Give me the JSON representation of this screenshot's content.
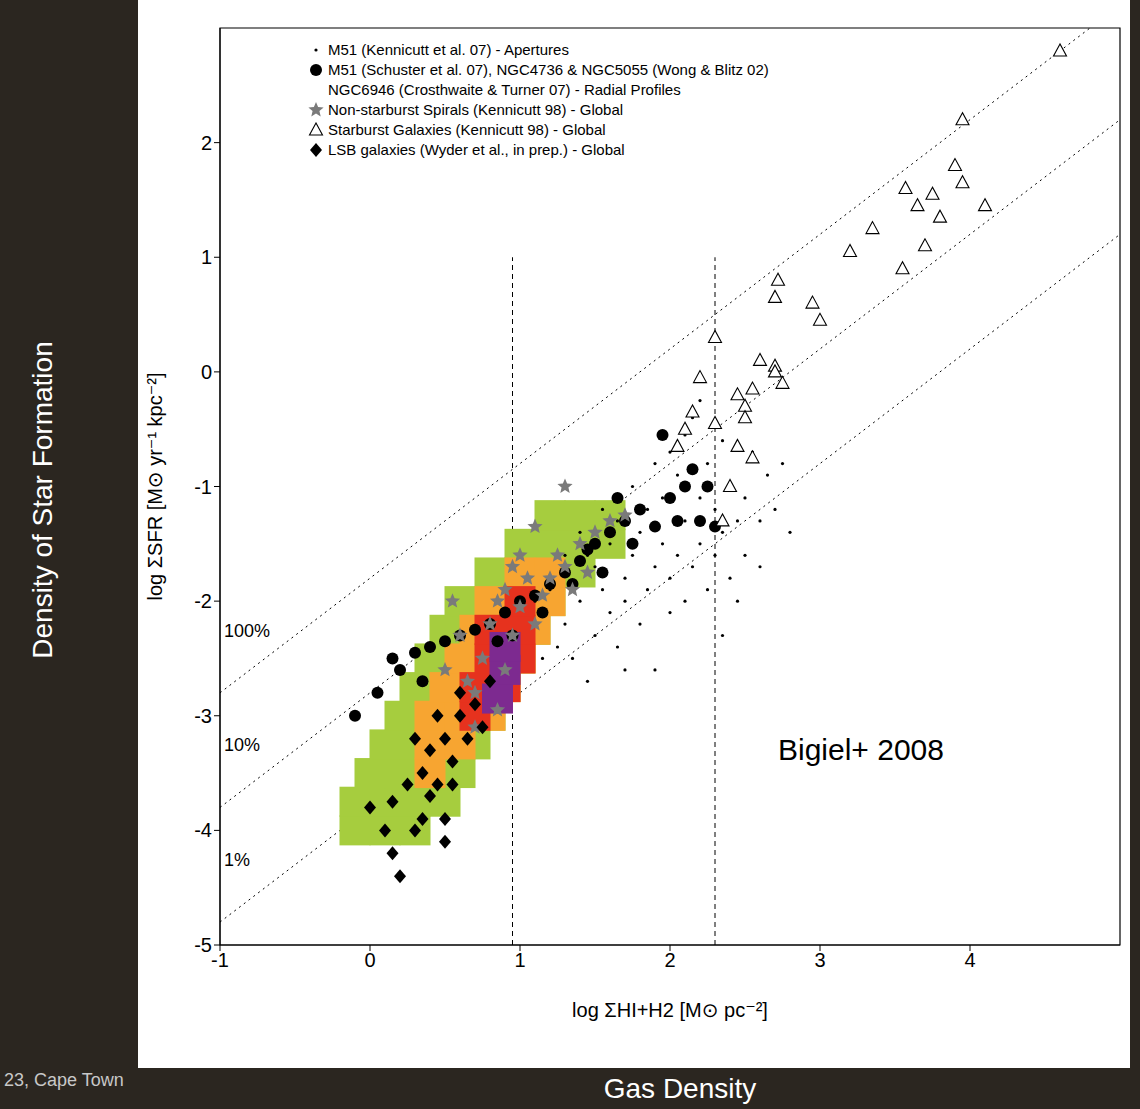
{
  "chart_data": {
    "type": "scatter",
    "xlabel": "log ΣHI+H2 [M⊙ pc⁻²]",
    "ylabel": "log ΣSFR [M⊙ yr⁻¹ kpc⁻²]",
    "outer_xlabel": "Gas Density",
    "outer_ylabel": "Density of Star Formation",
    "annotation": "Bigiel+ 2008",
    "footer": "23, Cape Town",
    "xlim": [
      -1,
      5
    ],
    "ylim": [
      -5,
      3
    ],
    "xticks": [
      -1,
      0,
      1,
      2,
      3,
      4
    ],
    "yticks": [
      -5,
      -4,
      -3,
      -2,
      -1,
      0,
      1,
      2
    ],
    "grid": false,
    "legend": "upper left",
    "lines": [
      {
        "label": "100%",
        "x": [
          -1,
          4.8
        ],
        "y": [
          -2.8,
          3.0
        ],
        "line_style": "dotted"
      },
      {
        "label": "10%",
        "x": [
          -1,
          5
        ],
        "y": [
          -3.8,
          2.2
        ],
        "line_style": "dotted"
      },
      {
        "label": "1%",
        "x": [
          -1,
          5
        ],
        "y": [
          -4.8,
          1.2
        ],
        "line_style": "dotted"
      }
    ],
    "vlines": [
      {
        "x": 0.95,
        "y": [
          -5,
          1.0
        ],
        "line_style": "dashed"
      },
      {
        "x": 2.3,
        "y": [
          -5,
          1.0
        ],
        "line_style": "dashed"
      }
    ],
    "series": [
      {
        "color": "#a6cd3e",
        "marker": "square",
        "points": [
          [
            -0.1,
            -4.0
          ],
          [
            0.1,
            -4.0
          ],
          [
            0.3,
            -4.0
          ],
          [
            -0.1,
            -3.75
          ],
          [
            0.1,
            -3.75
          ],
          [
            0.3,
            -3.75
          ],
          [
            0.5,
            -3.75
          ],
          [
            0.0,
            -3.5
          ],
          [
            0.2,
            -3.5
          ],
          [
            0.4,
            -3.5
          ],
          [
            0.6,
            -3.5
          ],
          [
            0.1,
            -3.25
          ],
          [
            0.3,
            -3.25
          ],
          [
            0.5,
            -3.25
          ],
          [
            0.7,
            -3.25
          ],
          [
            0.2,
            -3.0
          ],
          [
            0.4,
            -3.0
          ],
          [
            0.6,
            -3.0
          ],
          [
            0.8,
            -3.0
          ],
          [
            0.3,
            -2.75
          ],
          [
            0.5,
            -2.75
          ],
          [
            0.7,
            -2.75
          ],
          [
            0.9,
            -2.75
          ],
          [
            0.4,
            -2.5
          ],
          [
            0.6,
            -2.5
          ],
          [
            0.8,
            -2.5
          ],
          [
            1.0,
            -2.5
          ],
          [
            0.5,
            -2.25
          ],
          [
            0.7,
            -2.25
          ],
          [
            0.9,
            -2.25
          ],
          [
            1.1,
            -2.25
          ],
          [
            0.6,
            -2.0
          ],
          [
            0.8,
            -2.0
          ],
          [
            1.0,
            -2.0
          ],
          [
            1.2,
            -2.0
          ],
          [
            0.8,
            -1.75
          ],
          [
            1.0,
            -1.75
          ],
          [
            1.2,
            -1.75
          ],
          [
            1.4,
            -1.75
          ],
          [
            1.0,
            -1.5
          ],
          [
            1.2,
            -1.5
          ],
          [
            1.4,
            -1.5
          ],
          [
            1.6,
            -1.5
          ],
          [
            1.2,
            -1.25
          ],
          [
            1.4,
            -1.25
          ],
          [
            1.6,
            -1.25
          ]
        ]
      },
      {
        "color": "#f7a531",
        "marker": "square",
        "points": [
          [
            0.4,
            -3.5
          ],
          [
            0.4,
            -3.25
          ],
          [
            0.6,
            -3.25
          ],
          [
            0.4,
            -3.0
          ],
          [
            0.6,
            -3.0
          ],
          [
            0.8,
            -3.0
          ],
          [
            0.5,
            -2.75
          ],
          [
            0.7,
            -2.75
          ],
          [
            0.9,
            -2.75
          ],
          [
            0.6,
            -2.5
          ],
          [
            0.8,
            -2.5
          ],
          [
            1.0,
            -2.5
          ],
          [
            0.7,
            -2.25
          ],
          [
            0.9,
            -2.25
          ],
          [
            1.1,
            -2.25
          ],
          [
            0.8,
            -2.0
          ],
          [
            1.0,
            -2.0
          ],
          [
            1.2,
            -2.0
          ],
          [
            1.0,
            -1.75
          ],
          [
            1.2,
            -1.75
          ]
        ]
      },
      {
        "color": "#e6321e",
        "marker": "square",
        "points": [
          [
            0.7,
            -3.0
          ],
          [
            0.7,
            -2.75
          ],
          [
            0.9,
            -2.75
          ],
          [
            0.8,
            -2.5
          ],
          [
            1.0,
            -2.5
          ],
          [
            0.8,
            -2.25
          ],
          [
            1.0,
            -2.25
          ],
          [
            1.0,
            -2.0
          ]
        ]
      },
      {
        "color": "#7d2a90",
        "marker": "square",
        "points": [
          [
            0.85,
            -2.85
          ],
          [
            0.9,
            -2.6
          ],
          [
            0.9,
            -2.4
          ]
        ]
      },
      {
        "name": "M51 (Kennicutt et al. 07) - Apertures",
        "color": "#000000",
        "marker": "dot",
        "points": [
          [
            1.2,
            -1.9
          ],
          [
            1.3,
            -2.2
          ],
          [
            1.35,
            -2.5
          ],
          [
            1.4,
            -2.0
          ],
          [
            1.45,
            -1.6
          ],
          [
            1.5,
            -2.3
          ],
          [
            1.55,
            -1.9
          ],
          [
            1.6,
            -2.1
          ],
          [
            1.6,
            -1.5
          ],
          [
            1.65,
            -2.4
          ],
          [
            1.7,
            -1.8
          ],
          [
            1.7,
            -2.0
          ],
          [
            1.75,
            -1.6
          ],
          [
            1.8,
            -2.2
          ],
          [
            1.8,
            -1.4
          ],
          [
            1.85,
            -1.9
          ],
          [
            1.9,
            -1.7
          ],
          [
            1.9,
            -2.6
          ],
          [
            1.95,
            -1.5
          ],
          [
            2.0,
            -1.8
          ],
          [
            2.0,
            -2.1
          ],
          [
            2.05,
            -1.6
          ],
          [
            2.1,
            -1.3
          ],
          [
            2.1,
            -2.0
          ],
          [
            2.15,
            -1.7
          ],
          [
            2.2,
            -1.5
          ],
          [
            2.2,
            -1.1
          ],
          [
            2.25,
            -1.9
          ],
          [
            2.3,
            -1.2
          ],
          [
            2.3,
            -1.6
          ],
          [
            2.35,
            -1.4
          ],
          [
            2.4,
            -1.8
          ],
          [
            2.4,
            -1.0
          ],
          [
            2.45,
            -1.3
          ],
          [
            2.5,
            -1.6
          ],
          [
            2.5,
            -1.1
          ],
          [
            2.6,
            -1.3
          ],
          [
            2.65,
            -0.9
          ],
          [
            2.7,
            -1.2
          ],
          [
            2.75,
            -0.8
          ],
          [
            2.55,
            -0.7
          ],
          [
            2.35,
            -0.6
          ],
          [
            2.25,
            -0.8
          ],
          [
            2.15,
            -0.4
          ],
          [
            2.05,
            -0.9
          ],
          [
            1.95,
            -1.1
          ],
          [
            1.85,
            -1.2
          ],
          [
            1.75,
            -1.0
          ],
          [
            1.65,
            -1.3
          ],
          [
            1.55,
            -1.2
          ],
          [
            1.5,
            -1.7
          ],
          [
            1.4,
            -1.4
          ],
          [
            1.3,
            -1.6
          ],
          [
            1.25,
            -2.4
          ],
          [
            1.15,
            -2.5
          ],
          [
            1.45,
            -2.7
          ],
          [
            1.1,
            -2.0
          ],
          [
            2.0,
            -0.7
          ],
          [
            1.9,
            -0.8
          ],
          [
            2.45,
            -2.0
          ],
          [
            2.6,
            -1.7
          ],
          [
            2.8,
            -1.4
          ],
          [
            2.35,
            -2.3
          ],
          [
            1.7,
            -2.6
          ],
          [
            2.2,
            -0.25
          ],
          [
            2.1,
            -0.55
          ]
        ]
      },
      {
        "name": "M51 (Schuster et al. 07), NGC4736 & NGC5055 (Wong & Blitz 02) NGC6946 (Crosthwaite & Turner 07) - Radial Profiles",
        "color": "#000000",
        "marker": "circle",
        "points": [
          [
            0.15,
            -2.5
          ],
          [
            0.3,
            -2.45
          ],
          [
            0.4,
            -2.4
          ],
          [
            0.5,
            -2.35
          ],
          [
            0.6,
            -2.3
          ],
          [
            0.7,
            -2.25
          ],
          [
            0.8,
            -2.2
          ],
          [
            0.9,
            -2.1
          ],
          [
            1.0,
            -2.0
          ],
          [
            1.1,
            -1.95
          ],
          [
            1.2,
            -1.85
          ],
          [
            1.3,
            -1.75
          ],
          [
            1.4,
            -1.65
          ],
          [
            1.5,
            -1.5
          ],
          [
            1.6,
            -1.4
          ],
          [
            1.65,
            -1.1
          ],
          [
            1.7,
            -1.3
          ],
          [
            1.8,
            -1.2
          ],
          [
            1.9,
            -1.35
          ],
          [
            1.95,
            -0.55
          ],
          [
            2.0,
            -1.1
          ],
          [
            2.1,
            -1.0
          ],
          [
            2.15,
            -0.85
          ],
          [
            2.2,
            -1.3
          ],
          [
            2.3,
            -1.35
          ],
          [
            2.25,
            -1.0
          ],
          [
            1.35,
            -1.85
          ],
          [
            1.55,
            -1.75
          ],
          [
            1.15,
            -2.1
          ],
          [
            0.85,
            -2.35
          ],
          [
            0.95,
            -2.3
          ],
          [
            1.45,
            -1.55
          ],
          [
            1.75,
            -1.5
          ],
          [
            2.05,
            -1.3
          ],
          [
            -0.1,
            -3.0
          ],
          [
            0.05,
            -2.8
          ],
          [
            0.2,
            -2.6
          ],
          [
            0.35,
            -2.7
          ]
        ]
      },
      {
        "name": "Non-starburst Spirals (Kennicutt 98) - Global",
        "color": "#7a7a7a",
        "marker": "star",
        "points": [
          [
            1.3,
            -1.0
          ],
          [
            1.1,
            -1.35
          ],
          [
            0.7,
            -2.8
          ],
          [
            0.75,
            -2.5
          ],
          [
            0.8,
            -2.2
          ],
          [
            0.85,
            -2.0
          ],
          [
            0.9,
            -1.9
          ],
          [
            0.95,
            -2.3
          ],
          [
            1.0,
            -2.05
          ],
          [
            1.05,
            -1.8
          ],
          [
            1.1,
            -2.2
          ],
          [
            1.15,
            -1.95
          ],
          [
            1.2,
            -1.8
          ],
          [
            1.25,
            -1.6
          ],
          [
            1.3,
            -1.7
          ],
          [
            1.4,
            -1.5
          ],
          [
            1.5,
            -1.4
          ],
          [
            1.6,
            -1.3
          ],
          [
            0.6,
            -2.3
          ],
          [
            0.65,
            -2.7
          ],
          [
            0.9,
            -2.6
          ],
          [
            1.0,
            -1.6
          ],
          [
            0.55,
            -2.0
          ],
          [
            0.95,
            -1.7
          ],
          [
            1.45,
            -1.75
          ],
          [
            1.7,
            -1.25
          ],
          [
            0.85,
            -2.95
          ],
          [
            0.7,
            -3.1
          ],
          [
            1.35,
            -1.9
          ],
          [
            0.5,
            -2.6
          ]
        ]
      },
      {
        "name": "Starburst Galaxies (Kennicutt 98) - Global",
        "color": "#000000",
        "marker": "triangle-open",
        "points": [
          [
            2.1,
            -0.5
          ],
          [
            2.15,
            -0.35
          ],
          [
            2.2,
            -0.05
          ],
          [
            2.3,
            0.3
          ],
          [
            2.05,
            -0.65
          ],
          [
            2.3,
            -0.45
          ],
          [
            2.35,
            -1.3
          ],
          [
            2.45,
            -0.2
          ],
          [
            2.5,
            -0.3
          ],
          [
            2.5,
            -0.4
          ],
          [
            2.55,
            -0.15
          ],
          [
            2.55,
            -0.75
          ],
          [
            2.6,
            0.1
          ],
          [
            2.7,
            0.05
          ],
          [
            2.7,
            0.0
          ],
          [
            2.75,
            -0.1
          ],
          [
            2.7,
            0.65
          ],
          [
            2.72,
            0.8
          ],
          [
            2.95,
            0.6
          ],
          [
            3.0,
            0.45
          ],
          [
            3.2,
            1.05
          ],
          [
            3.35,
            1.25
          ],
          [
            3.55,
            0.9
          ],
          [
            3.57,
            1.6
          ],
          [
            3.65,
            1.45
          ],
          [
            3.7,
            1.1
          ],
          [
            3.75,
            1.55
          ],
          [
            3.8,
            1.35
          ],
          [
            3.9,
            1.8
          ],
          [
            3.95,
            1.65
          ],
          [
            3.95,
            2.2
          ],
          [
            4.1,
            1.45
          ],
          [
            4.6,
            2.8
          ],
          [
            2.45,
            -0.65
          ],
          [
            2.4,
            -1.0
          ]
        ]
      },
      {
        "name": "LSB galaxies (Wyder et al., in prep.) - Global",
        "color": "#000000",
        "marker": "diamond",
        "points": [
          [
            0.0,
            -3.8
          ],
          [
            0.2,
            -4.4
          ],
          [
            0.1,
            -4.0
          ],
          [
            0.15,
            -3.75
          ],
          [
            0.25,
            -3.6
          ],
          [
            0.3,
            -4.0
          ],
          [
            0.35,
            -3.5
          ],
          [
            0.4,
            -3.3
          ],
          [
            0.45,
            -3.6
          ],
          [
            0.5,
            -3.2
          ],
          [
            0.5,
            -3.9
          ],
          [
            0.55,
            -3.4
          ],
          [
            0.6,
            -3.0
          ],
          [
            0.65,
            -3.2
          ],
          [
            0.7,
            -2.9
          ],
          [
            0.75,
            -3.1
          ],
          [
            0.4,
            -3.7
          ],
          [
            0.3,
            -3.2
          ],
          [
            0.55,
            -3.6
          ],
          [
            0.6,
            -2.8
          ],
          [
            0.8,
            -2.7
          ],
          [
            0.45,
            -3.0
          ],
          [
            0.35,
            -3.9
          ],
          [
            0.5,
            -4.1
          ],
          [
            0.15,
            -4.2
          ]
        ]
      }
    ]
  }
}
